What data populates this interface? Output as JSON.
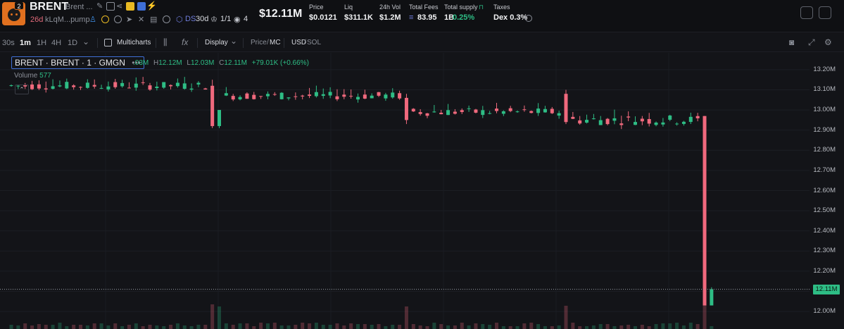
{
  "token": {
    "symbol": "BRENT",
    "full_name": "Brent ...",
    "logo_badge": "2",
    "age": "26d",
    "address": "kLqM...pump",
    "ds_label": "DS",
    "ds_period": "30d",
    "holders_ratio": "1/1",
    "watchers": "4",
    "market_cap": "$12.11M"
  },
  "stats": [
    {
      "label": "Price",
      "value": "$0.0121"
    },
    {
      "label": "Liq",
      "value": "$311.1K"
    },
    {
      "label": "24h Vol",
      "value": "$1.2M"
    },
    {
      "label": "Total Fees",
      "value": "83.95"
    },
    {
      "label": "Total supply",
      "value": "1B",
      "extra": "0.25%"
    },
    {
      "label": "Taxes",
      "value": "Dex 0.3%"
    }
  ],
  "toolbar": {
    "timeframes": [
      "30s",
      "1m",
      "1H",
      "4H",
      "1D"
    ],
    "active_timeframe": "1m",
    "multicharts": "Multicharts",
    "display": "Display",
    "price_label": "Price",
    "mc_label": "MC",
    "usd_label": "USD",
    "sol_label": "SOL"
  },
  "legend": {
    "title": "BRENT · BRENT · 1 · GMGN",
    "dots": "•••",
    "ohlc": [
      {
        "label": "",
        "value": ".03M"
      },
      {
        "label": "H",
        "value": "12.12M"
      },
      {
        "label": "L",
        "value": "12.03M"
      },
      {
        "label": "C",
        "value": "12.11M"
      },
      {
        "label": "",
        "value": "+79.01K (+0.66%)"
      }
    ],
    "volume_label": "Volume",
    "volume_value": "577"
  },
  "colors": {
    "up": "#2ebd85",
    "down": "#f0697d",
    "accent": "#3f6fd6",
    "background": "#131418"
  },
  "chart_data": {
    "type": "candlestick",
    "y_axis_ticks": [
      "13.20M",
      "13.10M",
      "13.00M",
      "12.90M",
      "12.80M",
      "12.70M",
      "12.60M",
      "12.50M",
      "12.40M",
      "12.30M",
      "12.20M",
      "12.10M",
      "12.00M"
    ],
    "ylim": [
      11.99,
      13.21
    ],
    "y_unit": "M",
    "last_price_label": "12.11M",
    "last_price": 12.11,
    "segments": [
      {
        "start": 0,
        "end": 29,
        "level": 13.12,
        "amplitude": 0.04
      },
      {
        "start": 30,
        "end": 57,
        "level": 13.07,
        "amplitude": 0.04
      },
      {
        "start": 58,
        "end": 80,
        "level": 12.99,
        "amplitude": 0.04
      },
      {
        "start": 81,
        "end": 100,
        "level": 12.95,
        "amplitude": 0.05
      }
    ],
    "special_candles": [
      {
        "index": 29,
        "open": 13.12,
        "high": 13.15,
        "low": 12.91,
        "close": 12.92
      },
      {
        "index": 30,
        "open": 12.92,
        "high": 13.0,
        "low": 12.91,
        "close": 13.0
      },
      {
        "index": 57,
        "open": 13.06,
        "high": 13.08,
        "low": 12.93,
        "close": 12.95
      },
      {
        "index": 80,
        "open": 13.08,
        "high": 13.1,
        "low": 12.93,
        "close": 12.94
      },
      {
        "index": 100,
        "open": 12.97,
        "high": 12.97,
        "low": 12.03,
        "close": 12.03
      },
      {
        "index": 101,
        "open": 12.03,
        "high": 12.12,
        "low": 12.03,
        "close": 12.11
      }
    ],
    "volume": "577",
    "grid": true
  }
}
